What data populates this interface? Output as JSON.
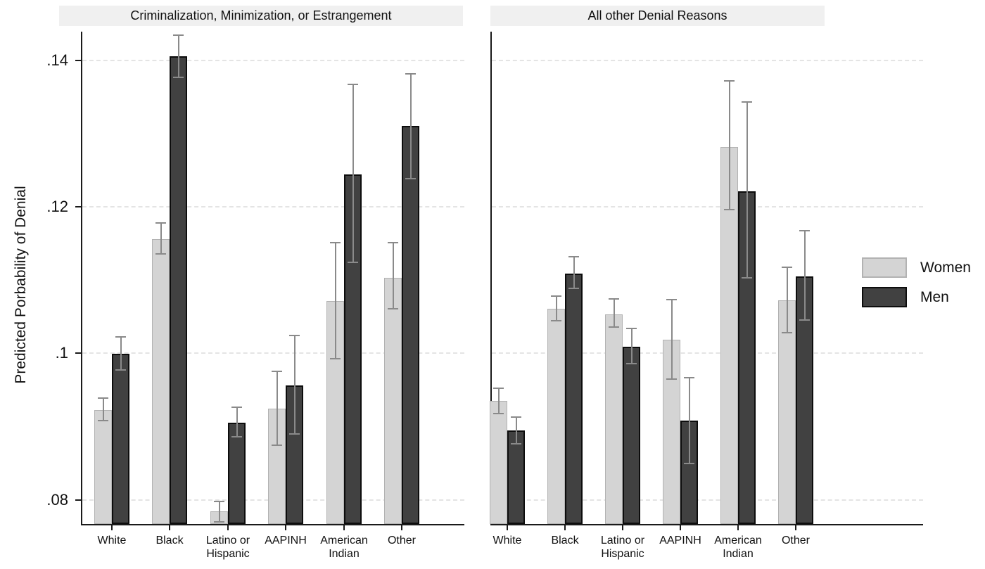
{
  "chart_data": {
    "type": "bar",
    "title": "",
    "ylabel": "Predicted Porbability of Denial",
    "categories": [
      "White",
      "Black",
      "Latino or Hispanic",
      "AAPINH",
      "American Indian",
      "Other"
    ],
    "category_display_labels": [
      "White",
      "Black",
      "Latino or\nHispanic",
      "AAPINH",
      "American\nIndian",
      "Other"
    ],
    "yticks": [
      0.08,
      0.1,
      0.12,
      0.14
    ],
    "ytick_labels": [
      ".08",
      ".1",
      ".12",
      ".14"
    ],
    "ylim": [
      0.0767,
      0.1439
    ],
    "grid": true,
    "grid_style": "dashed-horizontal",
    "legend": [
      "Women",
      "Men"
    ],
    "legend_position": "right",
    "error_bars": "95% CI",
    "panels": [
      {
        "title": "Criminalization, Minimization, or Estrangement",
        "series": [
          {
            "name": "Women",
            "values": [
              0.0923,
              0.1156,
              0.0784,
              0.0924,
              0.1071,
              0.1103
            ],
            "ci_low": [
              0.0908,
              0.1136,
              0.077,
              0.0875,
              0.0993,
              0.1061
            ],
            "ci_high": [
              0.0939,
              0.1178,
              0.0798,
              0.0975,
              0.1151,
              0.1151
            ]
          },
          {
            "name": "Men",
            "values": [
              0.0999,
              0.1405,
              0.0905,
              0.0956,
              0.1244,
              0.131
            ],
            "ci_low": [
              0.0977,
              0.1377,
              0.0886,
              0.089,
              0.1124,
              0.1238
            ],
            "ci_high": [
              0.1022,
              0.1434,
              0.0926,
              0.1024,
              0.1367,
              0.1381
            ]
          }
        ]
      },
      {
        "title": "All other Denial Reasons",
        "series": [
          {
            "name": "Women",
            "values": [
              0.0935,
              0.1061,
              0.1053,
              0.1019,
              0.1282,
              0.1072
            ],
            "ci_low": [
              0.0918,
              0.1044,
              0.1036,
              0.0965,
              0.1196,
              0.1028
            ],
            "ci_high": [
              0.0952,
              0.1078,
              0.1074,
              0.1073,
              0.1372,
              0.1117
            ]
          },
          {
            "name": "Men",
            "values": [
              0.0895,
              0.1109,
              0.1009,
              0.0908,
              0.1221,
              0.1105
            ],
            "ci_low": [
              0.0876,
              0.1089,
              0.0986,
              0.085,
              0.1103,
              0.1045
            ],
            "ci_high": [
              0.0913,
              0.1132,
              0.1034,
              0.0967,
              0.1343,
              0.1167
            ]
          }
        ]
      }
    ],
    "colors": {
      "women_fill": "#d4d4d4",
      "women_border": "#b2b2b2",
      "men_fill": "#414141",
      "men_border": "#0d0d0d",
      "error_bar": "#8a8a8a",
      "title_strip_bg": "#f0f0f0",
      "gridline": "#e4e4e4",
      "axis": "#1a1a1a",
      "background": "#ffffff"
    }
  }
}
